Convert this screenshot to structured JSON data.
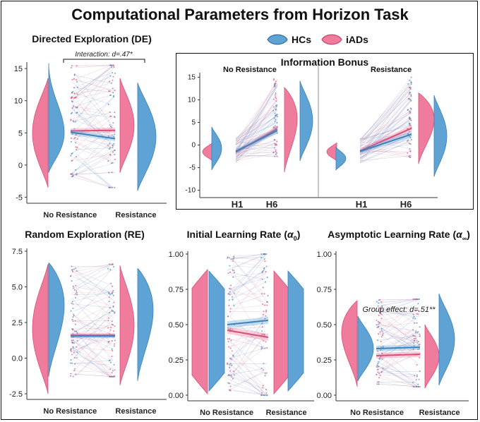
{
  "title": "Computational Parameters from Horizon Task",
  "legend": [
    {
      "label": "HCs",
      "color": "#5fa2d4"
    },
    {
      "label": "iADs",
      "color": "#ef7b9d"
    }
  ],
  "chart_data": [
    {
      "id": "de",
      "type": "violin-paired",
      "title": "Directed Exploration (DE)",
      "categories": [
        "No Resistance",
        "Resistance"
      ],
      "ylim": [
        -5.5,
        16
      ],
      "yticks": [
        -5,
        0,
        5,
        10,
        15
      ],
      "series": [
        {
          "name": "iADs",
          "means": [
            5.3,
            5.4
          ]
        },
        {
          "name": "HCs",
          "means": [
            5.1,
            4.1
          ]
        }
      ],
      "annotation": "Interaction: d=.47*"
    },
    {
      "id": "ib",
      "type": "line-paired",
      "title": "Information Bonus",
      "panels": [
        "No Resistance",
        "Resistance"
      ],
      "x": [
        "H1",
        "H6"
      ],
      "ylim": [
        -11,
        16
      ],
      "yticks": [
        -10,
        -5,
        0,
        5,
        10,
        15
      ],
      "series": [
        {
          "name": "iADs",
          "no_resistance": [
            -1.6,
            3.6
          ],
          "resistance": [
            -1.3,
            3.7
          ]
        },
        {
          "name": "HCs",
          "no_resistance": [
            -1.4,
            3.2
          ],
          "resistance": [
            -1.4,
            2.4
          ]
        }
      ]
    },
    {
      "id": "re",
      "type": "violin-paired",
      "title": "Random Exploration (RE)",
      "categories": [
        "No Resistance",
        "Resistance"
      ],
      "ylim": [
        -2.7,
        7.7
      ],
      "yticks": [
        -2.5,
        0.0,
        2.5,
        5.0,
        7.5
      ],
      "series": [
        {
          "name": "iADs",
          "means": [
            1.6,
            1.6
          ]
        },
        {
          "name": "HCs",
          "means": [
            1.55,
            1.55
          ]
        }
      ]
    },
    {
      "id": "ilr",
      "type": "violin-paired",
      "title": "Initial Learning Rate (α0)",
      "categories": [
        "No Resistance",
        "Resistance"
      ],
      "ylim": [
        -0.02,
        1.02
      ],
      "yticks": [
        0.0,
        0.25,
        0.5,
        0.75,
        1.0
      ],
      "series": [
        {
          "name": "iADs",
          "means": [
            0.46,
            0.41
          ]
        },
        {
          "name": "HCs",
          "means": [
            0.5,
            0.53
          ]
        }
      ]
    },
    {
      "id": "alr",
      "type": "violin-paired",
      "title": "Asymptotic Learning Rate (α∞)",
      "categories": [
        "No Resistance",
        "Resistance"
      ],
      "ylim": [
        -0.02,
        1.02
      ],
      "yticks": [
        0.0,
        0.25,
        0.5,
        0.75,
        1.0
      ],
      "series": [
        {
          "name": "iADs",
          "means": [
            0.28,
            0.29
          ]
        },
        {
          "name": "HCs",
          "means": [
            0.33,
            0.34
          ]
        }
      ],
      "annotation": "Group effect: d=.51**"
    }
  ]
}
